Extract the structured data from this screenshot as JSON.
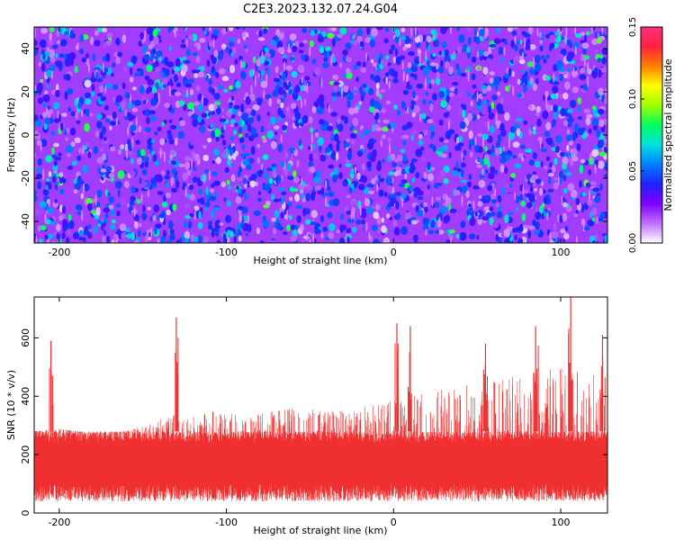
{
  "title": "C2E3.2023.132.07.24.G04",
  "colors": {
    "snr_trace": "#f03030",
    "axis": "#000000",
    "background": "#ffffff"
  },
  "chart_data": [
    {
      "type": "heatmap",
      "xlabel": "Height of straight line (km)",
      "ylabel": "Frequency (Hz)",
      "xlim": [
        -215,
        128
      ],
      "ylim": [
        -50,
        50
      ],
      "x_ticks": [
        -200,
        -100,
        0,
        100
      ],
      "y_ticks": [
        -40,
        -20,
        0,
        20,
        40
      ],
      "x_tick_labels": [
        "-200",
        "-100",
        "0",
        "100"
      ],
      "y_tick_labels": [
        "-40",
        "-20",
        "0",
        "20",
        "40"
      ],
      "colorbar": {
        "label": "Normalized spectral amplitude",
        "range": [
          0,
          0.15
        ],
        "ticks": [
          0,
          0.05,
          0.1,
          0.15
        ],
        "tick_labels": [
          "0.00",
          "0.05",
          "0.10",
          "0.15"
        ],
        "colormap": [
          "#ffffff",
          "#c070ff",
          "#8000ff",
          "#2020ff",
          "#0080ff",
          "#00e0e0",
          "#00ff60",
          "#a0ff00",
          "#ffff00",
          "#ff8000",
          "#ff2040",
          "#ff3080"
        ]
      },
      "dominant_value": 0.02,
      "grid": false
    },
    {
      "type": "area",
      "xlabel": "Height of straight line (km)",
      "ylabel": "SNR (10 * v/v)",
      "xlim": [
        -215,
        128
      ],
      "ylim": [
        0,
        740
      ],
      "x_ticks": [
        -200,
        -100,
        0,
        100
      ],
      "y_ticks": [
        0,
        200,
        400,
        600
      ],
      "x_tick_labels": [
        "-200",
        "-100",
        "0",
        "100"
      ],
      "y_tick_labels": [
        "0",
        "200",
        "400",
        "600"
      ],
      "baseline_band": [
        40,
        280
      ],
      "series": [
        {
          "x": [
            -215,
            -200,
            -180,
            -160,
            -140,
            -120,
            -100,
            -80,
            -60,
            -40,
            -20,
            0,
            20,
            40,
            60,
            80,
            100,
            120,
            128
          ],
          "typical_max": [
            280,
            290,
            270,
            280,
            320,
            360,
            340,
            340,
            360,
            350,
            360,
            400,
            410,
            440,
            460,
            480,
            500,
            480,
            460
          ],
          "peaks": [
            {
              "x": -205,
              "y": 590
            },
            {
              "x": -130,
              "y": 670
            },
            {
              "x": 2,
              "y": 650
            },
            {
              "x": 10,
              "y": 640
            },
            {
              "x": 55,
              "y": 580
            },
            {
              "x": 85,
              "y": 640
            },
            {
              "x": 106,
              "y": 740
            },
            {
              "x": 125,
              "y": 610
            }
          ]
        }
      ],
      "grid": false
    }
  ]
}
